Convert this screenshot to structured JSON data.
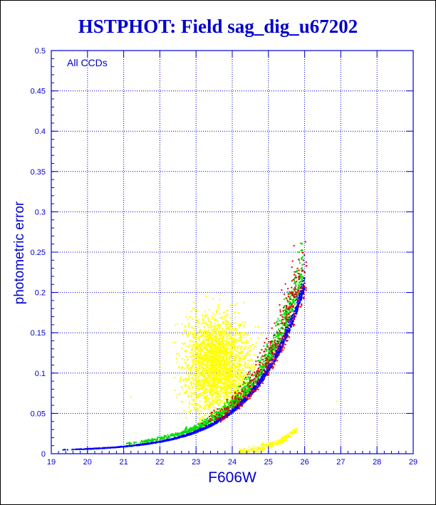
{
  "title": "HSTPHOT: Field sag_dig_u67202",
  "colors": {
    "axis": "#0000cc",
    "title": "#0000cc",
    "grid": "#0000cc",
    "series": {
      "yellow": "#ffff00",
      "red": "#e00000",
      "blue": "#0000ff",
      "green": "#00dd00",
      "black": "#000000"
    }
  },
  "chart_data": {
    "type": "scatter",
    "title": "HSTPHOT: Field sag_dig_u67202",
    "xlabel": "F606W",
    "ylabel": "photometric error",
    "annotation": "All CCDs",
    "xlim": [
      19,
      29
    ],
    "ylim": [
      0,
      0.5
    ],
    "xticks": [
      "19",
      "20",
      "21",
      "22",
      "23",
      "24",
      "25",
      "26",
      "27",
      "28",
      "29"
    ],
    "yticks": [
      "0",
      "0.05",
      "0.1",
      "0.15",
      "0.2",
      "0.25",
      "0.3",
      "0.35",
      "0.4",
      "0.45",
      "0.5"
    ],
    "grid": true,
    "series": [
      {
        "color": "yellow",
        "components": [
          {
            "kind": "cloud",
            "x_range": [
              22.4,
              25.2
            ],
            "y_range": [
              0.035,
              0.21
            ],
            "center": [
              23.6,
              0.11
            ]
          },
          {
            "kind": "faint-sequence",
            "x_range": [
              24.2,
              25.8
            ],
            "y_range": [
              0.003,
              0.03
            ]
          },
          {
            "kind": "outliers",
            "points": [
              [
                21.2,
                0.07
              ],
              [
                22.0,
                0.11
              ],
              [
                26.8,
                0.055
              ],
              [
                26.9,
                0.065
              ],
              [
                23.4,
                0.16
              ]
            ]
          }
        ]
      },
      {
        "color": "blue",
        "components": [
          {
            "kind": "main-sequence",
            "x_range": [
              19.3,
              26.0
            ],
            "y_range": [
              0.003,
              0.215
            ]
          }
        ]
      },
      {
        "color": "green",
        "components": [
          {
            "kind": "main-sequence-upper-edge",
            "x_range": [
              21.0,
              26.0
            ],
            "y_range": [
              0.012,
              0.215
            ]
          }
        ]
      },
      {
        "color": "red",
        "components": [
          {
            "kind": "scatter-near-sequence",
            "x_range": [
              23.3,
              26.0
            ],
            "y_range": [
              0.04,
              0.21
            ]
          }
        ]
      }
    ]
  }
}
